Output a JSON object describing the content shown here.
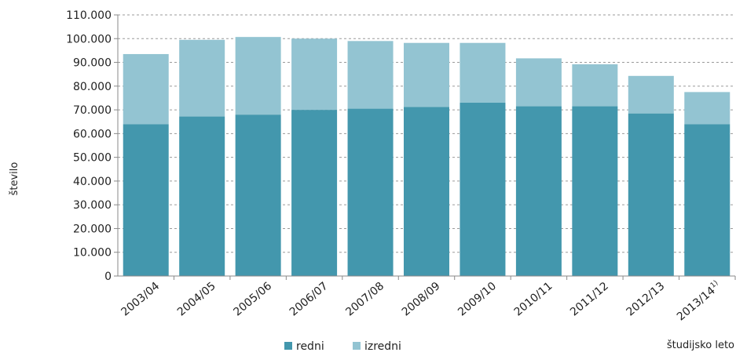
{
  "chart_data": {
    "type": "bar",
    "stacked": true,
    "xlabel": "študijsko leto",
    "ylabel": "število",
    "ylim": [
      0,
      110000
    ],
    "y_tick_values": [
      0,
      10000,
      20000,
      30000,
      40000,
      50000,
      60000,
      70000,
      80000,
      90000,
      100000,
      110000
    ],
    "y_tick_labels": [
      "0",
      "10.000",
      "20.000",
      "30.000",
      "40.000",
      "50.000",
      "60.000",
      "70.000",
      "80.000",
      "90.000",
      "100.000",
      "110.000"
    ],
    "categories": [
      {
        "label": "2003/04",
        "sup": ""
      },
      {
        "label": "2004/05",
        "sup": ""
      },
      {
        "label": "2005/06",
        "sup": ""
      },
      {
        "label": "2006/07",
        "sup": ""
      },
      {
        "label": "2007/08",
        "sup": ""
      },
      {
        "label": "2008/09",
        "sup": ""
      },
      {
        "label": "2009/10",
        "sup": ""
      },
      {
        "label": "2010/11",
        "sup": ""
      },
      {
        "label": "2011/12",
        "sup": ""
      },
      {
        "label": "2012/13",
        "sup": ""
      },
      {
        "label": "2013/14",
        "sup": "1)"
      }
    ],
    "series": [
      {
        "name": "redni",
        "color": "#4397ad",
        "values": [
          64000,
          67200,
          68000,
          70000,
          70500,
          71200,
          73000,
          71500,
          71500,
          68500,
          64000
        ]
      },
      {
        "name": "izredni",
        "color": "#93c4d2",
        "values": [
          29500,
          32300,
          32700,
          30000,
          28500,
          27000,
          25200,
          20200,
          17700,
          15800,
          13500
        ]
      }
    ],
    "grid": "horizontal dashed",
    "legend_position": "bottom"
  }
}
